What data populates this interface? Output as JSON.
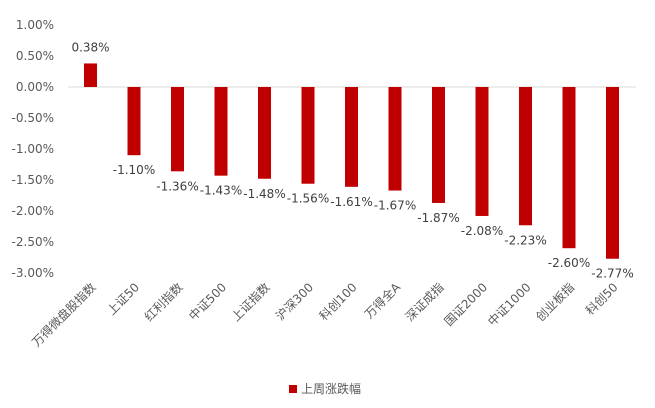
{
  "chart_data": {
    "type": "bar",
    "title": "",
    "xlabel": "",
    "ylabel": "",
    "categories": [
      "万得微盘股指数",
      "上证50",
      "红利指数",
      "中证500",
      "上证指数",
      "沪深300",
      "科创100",
      "万得全A",
      "深证成指",
      "国证2000",
      "中证1000",
      "创业板指",
      "科创50"
    ],
    "series": [
      {
        "name": "上周涨跌幅",
        "values": [
          0.38,
          -1.1,
          -1.36,
          -1.43,
          -1.48,
          -1.56,
          -1.61,
          -1.67,
          -1.87,
          -2.08,
          -2.23,
          -2.6,
          -2.77
        ],
        "labels": [
          "0.38%",
          "-1.10%",
          "-1.36%",
          "-1.43%",
          "-1.48%",
          "-1.56%",
          "-1.61%",
          "-1.67%",
          "-1.87%",
          "-2.08%",
          "-2.23%",
          "-2.60%",
          "-2.77%"
        ],
        "color": "#C00000"
      }
    ],
    "ylim": [
      -3.0,
      1.0
    ],
    "yticks": [
      1.0,
      0.5,
      0.0,
      -0.5,
      -1.0,
      -1.5,
      -2.0,
      -2.5,
      -3.0
    ],
    "ytick_labels": [
      "1.00%",
      "0.50%",
      "0.00%",
      "-0.50%",
      "-1.00%",
      "-1.50%",
      "-2.00%",
      "-2.50%",
      "-3.00%"
    ],
    "grid": false,
    "legend_position": "bottom"
  }
}
